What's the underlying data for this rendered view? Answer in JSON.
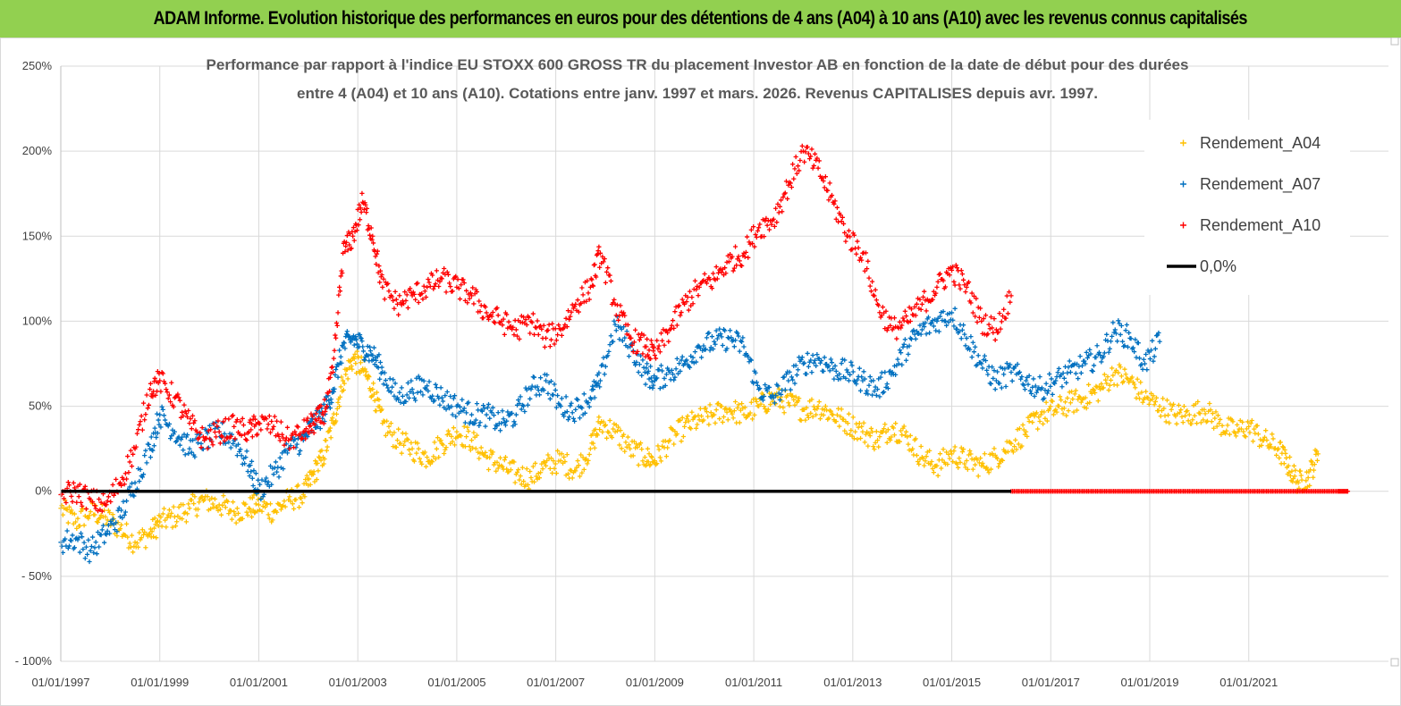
{
  "header": {
    "title": "ADAM Informe. Evolution historique des performances en euros pour des détentions de 4 ans (A04) à 10 ans (A10) avec les revenus connus capitalisés"
  },
  "colors": {
    "header_bg": "#92d050",
    "a04": "#ffc000",
    "a07": "#0070c0",
    "a10": "#ff0000",
    "zero": "#000000",
    "grid": "#d9d9d9"
  },
  "chart_data": {
    "type": "scatter",
    "title_lines": [
      "Performance par rapport à l'indice EU STOXX 600 GROSS TR  du placement Investor AB en fonction de la date de début pour des durées",
      "entre 4 (A04) et 10 ans (A10). Cotations entre janv. 1997 et mars. 2026. Revenus CAPITALISES depuis avr. 1997."
    ],
    "x_unit": "year",
    "x_range": [
      1997.0,
      2023.1
    ],
    "y_range": [
      -100,
      250
    ],
    "y_ticks": [
      {
        "value": 250,
        "label": "250%"
      },
      {
        "value": 200,
        "label": "200%"
      },
      {
        "value": 150,
        "label": "150%"
      },
      {
        "value": 100,
        "label": "100%"
      },
      {
        "value": 50,
        "label": "50%"
      },
      {
        "value": 0,
        "label": "0%"
      },
      {
        "value": -50,
        "label": "- 50%"
      },
      {
        "value": -100,
        "label": "- 100%"
      }
    ],
    "x_ticks": [
      {
        "value": 1997,
        "label": "01/01/1997"
      },
      {
        "value": 1999,
        "label": "01/01/1999"
      },
      {
        "value": 2001,
        "label": "01/01/2001"
      },
      {
        "value": 2003,
        "label": "01/01/2003"
      },
      {
        "value": 2005,
        "label": "01/01/2005"
      },
      {
        "value": 2007,
        "label": "01/01/2007"
      },
      {
        "value": 2009,
        "label": "01/01/2009"
      },
      {
        "value": 2011,
        "label": "01/01/2011"
      },
      {
        "value": 2013,
        "label": "01/01/2013"
      },
      {
        "value": 2015,
        "label": "01/01/2015"
      },
      {
        "value": 2017,
        "label": "01/01/2017"
      },
      {
        "value": 2019,
        "label": "01/01/2019"
      },
      {
        "value": 2021,
        "label": "01/01/2021"
      }
    ],
    "legend": [
      {
        "key": "a04",
        "label": "Rendement_A04",
        "marker": "+"
      },
      {
        "key": "a07",
        "label": "Rendement_A07",
        "marker": "+"
      },
      {
        "key": "a10",
        "label": "Rendement_A10",
        "marker": "+"
      },
      {
        "key": "zero",
        "label": "0,0%",
        "marker": "line"
      }
    ],
    "series": [
      {
        "name": "Rendement_A04",
        "key": "a04",
        "x": [
          1997.0,
          1997.3,
          1997.6,
          1997.9,
          1998.2,
          1998.5,
          1998.8,
          1999.0,
          1999.3,
          1999.6,
          1999.9,
          2000.2,
          2000.5,
          2000.8,
          2001.0,
          2001.3,
          2001.6,
          2001.9,
          2002.1,
          2002.3,
          2002.5,
          2002.7,
          2002.9,
          2003.1,
          2003.3,
          2003.5,
          2003.8,
          2004.1,
          2004.4,
          2004.7,
          2005.0,
          2005.3,
          2005.6,
          2005.9,
          2006.2,
          2006.5,
          2006.8,
          2007.1,
          2007.4,
          2007.7,
          2007.9,
          2008.2,
          2008.5,
          2008.8,
          2009.0,
          2009.3,
          2009.6,
          2009.9,
          2010.2,
          2010.5,
          2010.8,
          2011.1,
          2011.4,
          2011.7,
          2012.0,
          2012.3,
          2012.6,
          2012.9,
          2013.2,
          2013.5,
          2013.8,
          2014.1,
          2014.4,
          2014.7,
          2015.0,
          2015.3,
          2015.6,
          2015.9,
          2016.2,
          2016.5,
          2016.8,
          2017.1,
          2017.4,
          2017.7,
          2018.0,
          2018.3,
          2018.6,
          2018.9,
          2019.2,
          2019.5,
          2019.8,
          2020.1,
          2020.4,
          2020.7,
          2021.0,
          2021.3,
          2021.6,
          2021.8,
          2022.0,
          2022.2,
          2022.4
        ],
        "y": [
          -10,
          -18,
          -12,
          -15,
          -22,
          -30,
          -25,
          -18,
          -15,
          -10,
          -5,
          -8,
          -12,
          -10,
          -8,
          -12,
          -5,
          -2,
          10,
          20,
          40,
          65,
          78,
          72,
          60,
          40,
          30,
          25,
          20,
          28,
          35,
          30,
          20,
          15,
          10,
          8,
          15,
          18,
          12,
          25,
          40,
          35,
          25,
          20,
          18,
          30,
          38,
          42,
          45,
          48,
          45,
          50,
          55,
          52,
          48,
          50,
          45,
          40,
          35,
          30,
          38,
          32,
          20,
          15,
          22,
          18,
          15,
          20,
          28,
          35,
          45,
          48,
          52,
          55,
          60,
          70,
          65,
          55,
          50,
          45,
          45,
          48,
          40,
          35,
          38,
          30,
          25,
          15,
          5,
          8,
          22
        ]
      },
      {
        "name": "Rendement_A07",
        "key": "a07",
        "x": [
          1997.0,
          1997.3,
          1997.6,
          1997.9,
          1998.2,
          1998.5,
          1998.8,
          1999.0,
          1999.3,
          1999.6,
          1999.9,
          2000.2,
          2000.5,
          2000.8,
          2001.0,
          2001.3,
          2001.6,
          2001.9,
          2002.1,
          2002.3,
          2002.5,
          2002.7,
          2002.9,
          2003.1,
          2003.3,
          2003.5,
          2003.8,
          2004.1,
          2004.4,
          2004.7,
          2005.0,
          2005.3,
          2005.6,
          2005.9,
          2006.2,
          2006.5,
          2006.8,
          2007.1,
          2007.4,
          2007.7,
          2007.9,
          2008.2,
          2008.5,
          2008.8,
          2009.0,
          2009.3,
          2009.6,
          2009.9,
          2010.2,
          2010.5,
          2010.8,
          2011.1,
          2011.4,
          2011.7,
          2012.0,
          2012.3,
          2012.6,
          2012.9,
          2013.2,
          2013.5,
          2013.8,
          2014.1,
          2014.4,
          2014.7,
          2015.0,
          2015.3,
          2015.6,
          2015.9,
          2016.2,
          2016.5,
          2016.8,
          2017.1,
          2017.4,
          2017.7,
          2018.0,
          2018.3,
          2018.6,
          2018.9,
          2019.2
        ],
        "y": [
          -30,
          -28,
          -35,
          -25,
          -15,
          5,
          25,
          45,
          35,
          25,
          30,
          35,
          30,
          15,
          0,
          10,
          25,
          30,
          40,
          45,
          60,
          85,
          90,
          85,
          80,
          70,
          55,
          60,
          62,
          55,
          50,
          45,
          45,
          40,
          45,
          60,
          65,
          50,
          48,
          55,
          65,
          98,
          85,
          70,
          65,
          70,
          75,
          85,
          88,
          90,
          85,
          60,
          55,
          65,
          75,
          78,
          72,
          70,
          65,
          60,
          70,
          85,
          95,
          100,
          105,
          90,
          75,
          65,
          70,
          65,
          60,
          65,
          70,
          75,
          80,
          95,
          90,
          75,
          88
        ]
      },
      {
        "name": "Rendement_A10",
        "key": "a10",
        "x": [
          1997.0,
          1997.3,
          1997.6,
          1997.9,
          1998.2,
          1998.5,
          1998.8,
          1999.0,
          1999.3,
          1999.6,
          1999.9,
          2000.2,
          2000.5,
          2000.8,
          2001.0,
          2001.3,
          2001.6,
          2001.9,
          2002.1,
          2002.3,
          2002.5,
          2002.7,
          2002.9,
          2003.1,
          2003.3,
          2003.5,
          2003.8,
          2004.1,
          2004.4,
          2004.7,
          2005.0,
          2005.3,
          2005.6,
          2005.9,
          2006.2,
          2006.5,
          2006.8,
          2007.1,
          2007.4,
          2007.7,
          2007.9,
          2008.2,
          2008.5,
          2008.8,
          2009.0,
          2009.3,
          2009.6,
          2009.9,
          2010.2,
          2010.5,
          2010.8,
          2011.1,
          2011.4,
          2011.7,
          2012.0,
          2012.3,
          2012.6,
          2012.9,
          2013.2,
          2013.5,
          2013.8,
          2014.1,
          2014.4,
          2014.7,
          2015.0,
          2015.3,
          2015.6,
          2015.9,
          2016.2
        ],
        "y": [
          -2,
          0,
          -5,
          -8,
          5,
          25,
          60,
          65,
          55,
          40,
          30,
          35,
          38,
          35,
          40,
          38,
          30,
          35,
          40,
          45,
          70,
          140,
          150,
          170,
          150,
          120,
          110,
          115,
          120,
          125,
          120,
          115,
          105,
          100,
          95,
          100,
          90,
          95,
          110,
          120,
          140,
          110,
          90,
          85,
          80,
          95,
          110,
          120,
          125,
          135,
          140,
          155,
          160,
          180,
          200,
          190,
          170,
          150,
          140,
          110,
          95,
          100,
          110,
          120,
          130,
          120,
          100,
          95,
          115
        ]
      },
      {
        "name": "Rendement_A10 (0%)",
        "key": "a10",
        "x": [
          2016.2,
          2016.5,
          2016.8,
          2017.1,
          2017.4,
          2017.7,
          2018.0,
          2018.3,
          2018.6,
          2018.9,
          2019.2,
          2019.5,
          2019.8,
          2020.1,
          2020.4,
          2020.7,
          2021.0,
          2021.3,
          2021.6,
          2021.9,
          2022.2,
          2022.5,
          2022.8,
          2023.0
        ],
        "y": [
          0,
          0,
          0,
          0,
          0,
          0,
          0,
          0,
          0,
          0,
          0,
          0,
          0,
          0,
          0,
          0,
          0,
          0,
          0,
          0,
          0,
          0,
          0,
          0
        ]
      }
    ],
    "zero_line": {
      "label": "0,0%",
      "value": 0,
      "x_start": 1997.0,
      "x_end": 2016.2
    }
  }
}
